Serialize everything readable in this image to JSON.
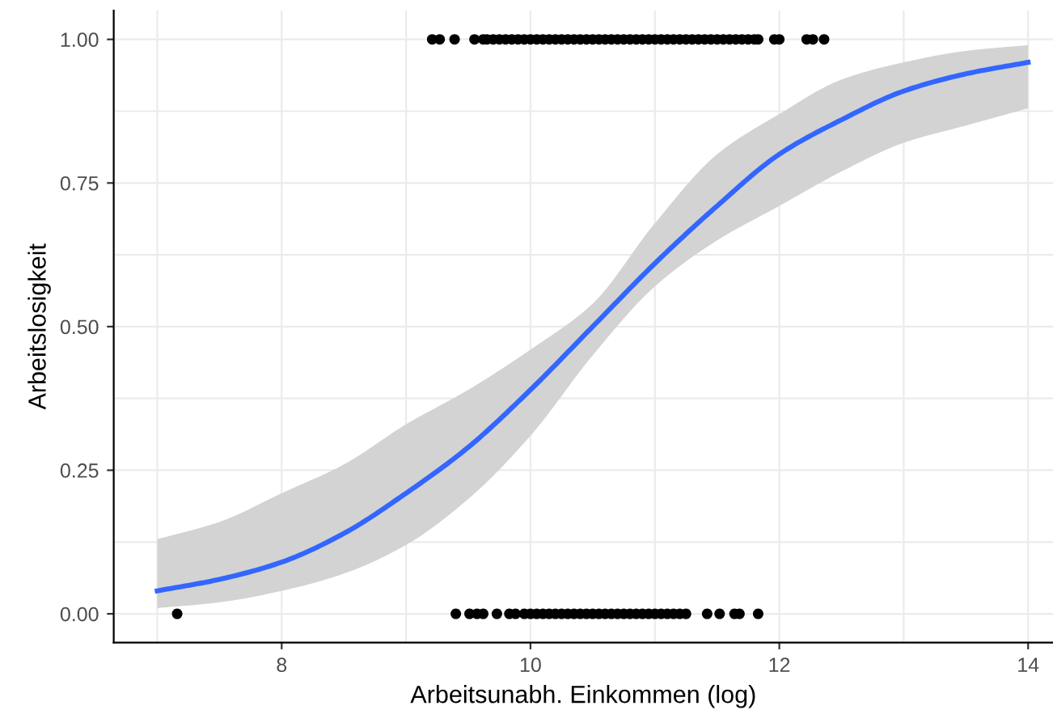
{
  "chart_data": {
    "type": "scatter",
    "xlabel": "Arbeitsunabh. Einkommen (log)",
    "ylabel": "Arbeitslosigkeit",
    "xlim": [
      6.65,
      14.2
    ],
    "ylim": [
      -0.05,
      1.05
    ],
    "xticks": [
      8,
      10,
      12,
      14
    ],
    "yticks": [
      {
        "value": 0,
        "label": "0.00"
      },
      {
        "value": 0.25,
        "label": "0.25"
      },
      {
        "value": 0.5,
        "label": "0.50"
      },
      {
        "value": 0.75,
        "label": "0.75"
      },
      {
        "value": 1,
        "label": "1.00"
      }
    ],
    "grid": true,
    "marker": "circle",
    "series": [
      {
        "color": "#000000",
        "x": [
          9.21,
          9.27,
          9.39,
          9.55,
          9.62,
          9.65,
          9.7,
          9.75,
          9.8,
          9.85,
          9.9,
          9.95,
          10,
          10.05,
          10.1,
          10.15,
          10.2,
          10.25,
          10.3,
          10.35,
          10.4,
          10.45,
          10.5,
          10.55,
          10.6,
          10.65,
          10.7,
          10.75,
          10.8,
          10.85,
          10.9,
          10.95,
          11,
          11.05,
          11.1,
          11.15,
          11.2,
          11.25,
          11.3,
          11.35,
          11.4,
          11.45,
          11.5,
          11.55,
          11.6,
          11.65,
          11.7,
          11.75,
          11.8,
          11.83,
          11.96,
          12.0,
          12.22,
          12.27,
          12.36,
          7.16,
          9.4,
          9.51,
          9.57,
          9.62,
          9.73,
          9.83,
          9.88,
          9.95,
          10,
          10.05,
          10.1,
          10.15,
          10.2,
          10.25,
          10.3,
          10.35,
          10.4,
          10.45,
          10.5,
          10.55,
          10.6,
          10.65,
          10.7,
          10.75,
          10.8,
          10.85,
          10.9,
          10.95,
          11,
          11.05,
          11.1,
          11.15,
          11.2,
          11.25,
          11.42,
          11.52,
          11.64,
          11.68,
          11.83
        ],
        "values": [
          1,
          1,
          1,
          1,
          1,
          1,
          1,
          1,
          1,
          1,
          1,
          1,
          1,
          1,
          1,
          1,
          1,
          1,
          1,
          1,
          1,
          1,
          1,
          1,
          1,
          1,
          1,
          1,
          1,
          1,
          1,
          1,
          1,
          1,
          1,
          1,
          1,
          1,
          1,
          1,
          1,
          1,
          1,
          1,
          1,
          1,
          1,
          1,
          1,
          1,
          1,
          1,
          1,
          1,
          1,
          0,
          0,
          0,
          0,
          0,
          0,
          0,
          0,
          0,
          0,
          0,
          0,
          0,
          0,
          0,
          0,
          0,
          0,
          0,
          0,
          0,
          0,
          0,
          0,
          0,
          0,
          0,
          0,
          0,
          0,
          0,
          0,
          0,
          0,
          0,
          0,
          0,
          0,
          0,
          0
        ]
      },
      {
        "type": "line",
        "color": "#3366ff",
        "marker": "none",
        "x": [
          7,
          7.5,
          8,
          8.5,
          9,
          9.5,
          10,
          10.5,
          11,
          11.5,
          12,
          12.5,
          13,
          13.5,
          14
        ],
        "values": [
          0.04,
          0.06,
          0.09,
          0.14,
          0.21,
          0.29,
          0.39,
          0.5,
          0.61,
          0.71,
          0.8,
          0.86,
          0.91,
          0.94,
          0.96
        ],
        "lower": [
          0.01,
          0.02,
          0.04,
          0.07,
          0.12,
          0.2,
          0.31,
          0.45,
          0.57,
          0.65,
          0.71,
          0.77,
          0.82,
          0.85,
          0.88
        ],
        "upper": [
          0.13,
          0.16,
          0.21,
          0.26,
          0.33,
          0.39,
          0.46,
          0.54,
          0.68,
          0.8,
          0.87,
          0.93,
          0.96,
          0.98,
          0.99
        ]
      }
    ]
  }
}
